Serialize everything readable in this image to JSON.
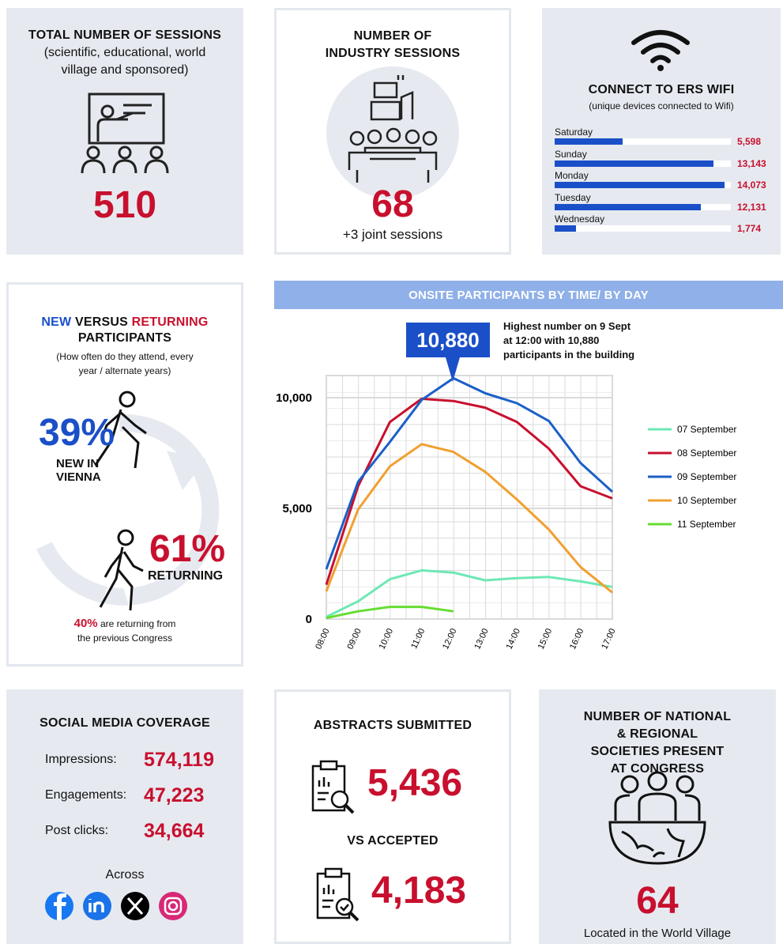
{
  "sessions": {
    "title": "TOTAL NUMBER OF SESSIONS",
    "subtitle": "(scientific, educational, world village and sponsored)",
    "value": "510"
  },
  "industry": {
    "title": "NUMBER OF INDUSTRY SESSIONS",
    "value": "68",
    "note": "+3 joint sessions"
  },
  "wifi": {
    "title": "CONNECT TO ERS WIFI",
    "subtitle": "(unique devices connected to Wifi)",
    "type": "bar",
    "categories": [
      "Saturday",
      "Sunday",
      "Monday",
      "Tuesday",
      "Wednesday"
    ],
    "values": [
      5598,
      13143,
      14073,
      12131,
      1774
    ],
    "value_labels": [
      "5,598",
      "13,143",
      "14,073",
      "12,131",
      "1,774"
    ],
    "xlim": [
      0,
      14600
    ],
    "color": "#1a4fc8"
  },
  "participants": {
    "title": [
      "NEW",
      "VERSUS",
      "RETURNING",
      "PARTICIPANTS"
    ],
    "subtitle": "(How often do they attend, every year / alternate years)",
    "new_value": "39%",
    "new_label": "NEW IN VIENNA",
    "returning_value": "61%",
    "returning_label": "RETURNING",
    "note_value": "40%",
    "note": "are returning from the previous Congress"
  },
  "chart_data": {
    "type": "line",
    "title": "ONSITE PARTICIPANTS BY TIME/ BY DAY",
    "categories": [
      "08:00",
      "09:00",
      "10:00",
      "11:00",
      "12:00",
      "13:00",
      "14:00",
      "15:00",
      "16:00",
      "17:00"
    ],
    "series": [
      {
        "name": "07 September",
        "color": "#6ee8b4",
        "values": [
          100,
          800,
          1800,
          2200,
          2100,
          1750,
          1850,
          1900,
          1700,
          1450
        ]
      },
      {
        "name": "08 September",
        "color": "#c8102e",
        "values": [
          1550,
          6000,
          8900,
          9950,
          9850,
          9550,
          8900,
          7700,
          6000,
          5450
        ]
      },
      {
        "name": "09 September",
        "color": "#1a5fc8",
        "values": [
          2250,
          6200,
          8000,
          9900,
          10880,
          10200,
          9750,
          8950,
          7050,
          5750
        ]
      },
      {
        "name": "10 September",
        "color": "#f0a030",
        "values": [
          1250,
          4950,
          6900,
          7900,
          7550,
          6650,
          5400,
          4050,
          2350,
          1200
        ]
      },
      {
        "name": "11 September",
        "color": "#66dd33",
        "values": [
          50,
          350,
          550,
          550,
          350,
          null,
          null,
          null,
          null,
          null
        ]
      }
    ],
    "ylim": [
      0,
      11000
    ],
    "yticks": [
      0,
      {
        "value": 5000,
        "label": "5,000"
      },
      {
        "value": 10000,
        "label": "10,000"
      }
    ],
    "grid": true,
    "legend": "right",
    "annotation": {
      "callout": "10,880",
      "text": "Highest number on 9 Sept at 12:00 with 10,880 participants in the building"
    }
  },
  "social": {
    "title": "SOCIAL MEDIA COVERAGE",
    "rows": [
      {
        "label": "Impressions:",
        "value": "574,119"
      },
      {
        "label": "Engagements:",
        "value": "47,223"
      },
      {
        "label": "Post clicks:",
        "value": "34,664"
      }
    ],
    "across": "Across"
  },
  "abstracts": {
    "title": "ABSTRACTS SUBMITTED",
    "submitted": "5,436",
    "versus": "VS ACCEPTED",
    "accepted": "4,183"
  },
  "societies": {
    "title": "NUMBER OF NATIONAL & REGIONAL SOCIETIES PRESENT AT CONGRESS",
    "value": "64",
    "note": "Located in the World Village"
  }
}
